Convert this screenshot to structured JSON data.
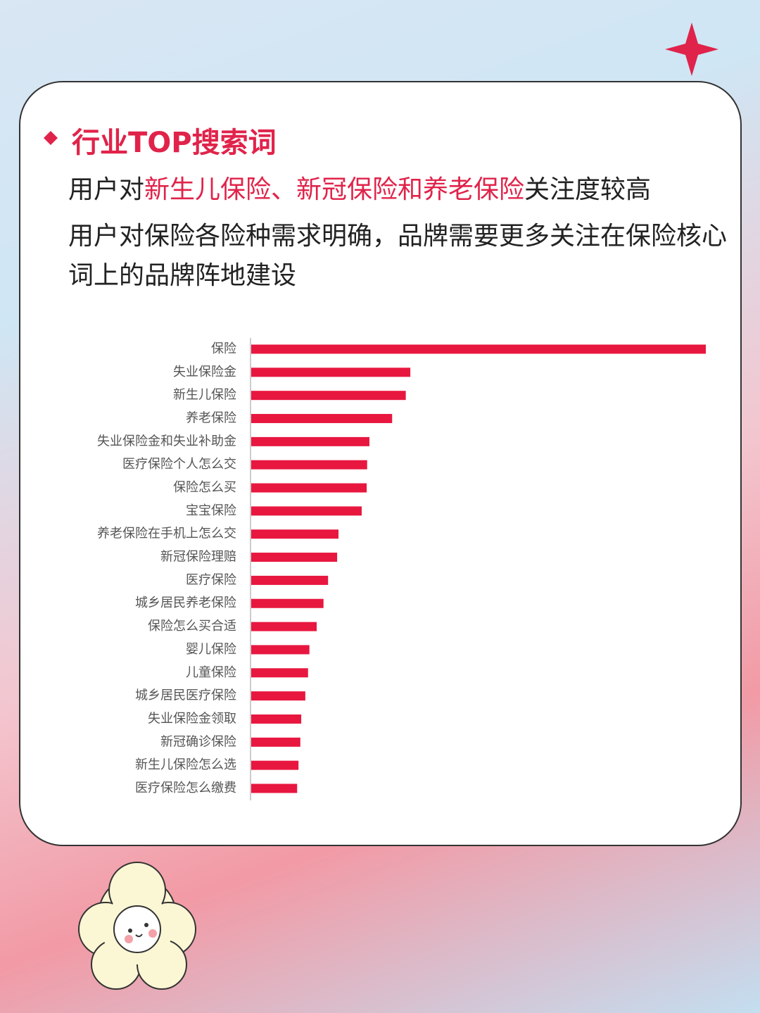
{
  "header": {
    "title": "行业TOP搜索词",
    "summary": [
      "用户对",
      "新生儿保险、新冠保险和养老保险",
      "关注度较高"
    ],
    "note": "用户对保险各险种需求明确，品牌需要更多关注在保险核心词上的品牌阵地建设"
  },
  "chart_data": {
    "type": "hbar",
    "color": "#e8173f",
    "xlim": [
      0,
      100
    ],
    "categories": [
      "保险",
      "失业保险金",
      "新生儿保险",
      "养老保险",
      "失业保险金和失业补助金",
      "医疗保险个人怎么交",
      "保险怎么买",
      "宝宝保险",
      "养老保险在手机上怎么交",
      "新冠保险理赔",
      "医疗保险",
      "城乡居民养老保险",
      "保险怎么买合适",
      "婴儿保险",
      "儿童保险",
      "城乡居民医疗保险",
      "失业保险金领取",
      "新冠确诊保险",
      "新生儿保险怎么选",
      "医疗保险怎么缴费"
    ],
    "values": [
      100,
      35,
      34,
      31,
      26,
      25.5,
      25.4,
      24.3,
      19.2,
      18.9,
      16.9,
      15.9,
      14.4,
      12.8,
      12.5,
      11.9,
      11,
      10.8,
      10.4,
      10.1
    ]
  }
}
